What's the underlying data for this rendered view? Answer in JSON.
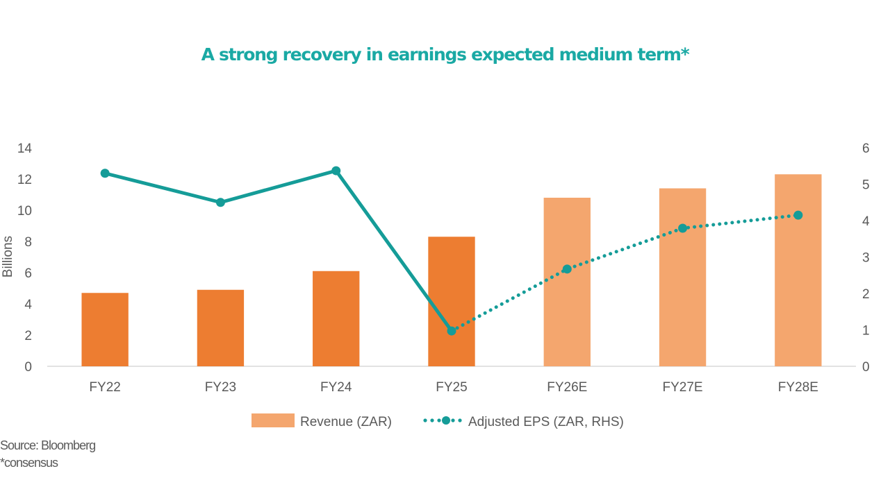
{
  "title": "A strong recovery in earnings expected medium term*",
  "footer": {
    "source": "Source: Bloomberg",
    "note": "*consensus"
  },
  "colors": {
    "title": "#1aa9a4",
    "bar_actual": "#ed7d31",
    "bar_estimate": "#f4a66e",
    "eps_line": "#159c98",
    "axis_text": "#595959",
    "axis_line": "#d9d9d9"
  },
  "chart_data": {
    "type": "bar",
    "title": "A strong recovery in earnings expected medium term*",
    "categories": [
      "FY22",
      "FY23",
      "FY24",
      "FY25",
      "FY26E",
      "FY27E",
      "FY28E"
    ],
    "estimate_from_index": 4,
    "series": [
      {
        "name": "Revenue (ZAR)",
        "type": "bar",
        "axis": "left",
        "values": [
          4.7,
          4.9,
          6.1,
          8.3,
          10.8,
          11.4,
          12.3
        ]
      },
      {
        "name": "Adjusted EPS (ZAR, RHS)",
        "type": "line",
        "axis": "right",
        "values": [
          5.3,
          4.5,
          5.37,
          0.97,
          2.67,
          3.79,
          4.15
        ],
        "solid_until_index": 3,
        "dotted_after_index": 3
      }
    ],
    "xlabel": "",
    "ylabel": "Billions",
    "ylim": [
      0,
      14
    ],
    "yticks": [
      0,
      2,
      4,
      6,
      8,
      10,
      12,
      14
    ],
    "y2lim": [
      0,
      6
    ],
    "y2ticks": [
      0,
      1,
      2,
      3,
      4,
      5,
      6
    ],
    "grid": false,
    "legend": {
      "position": "bottom",
      "entries": [
        "Revenue (ZAR)",
        "Adjusted EPS (ZAR, RHS)"
      ]
    }
  }
}
